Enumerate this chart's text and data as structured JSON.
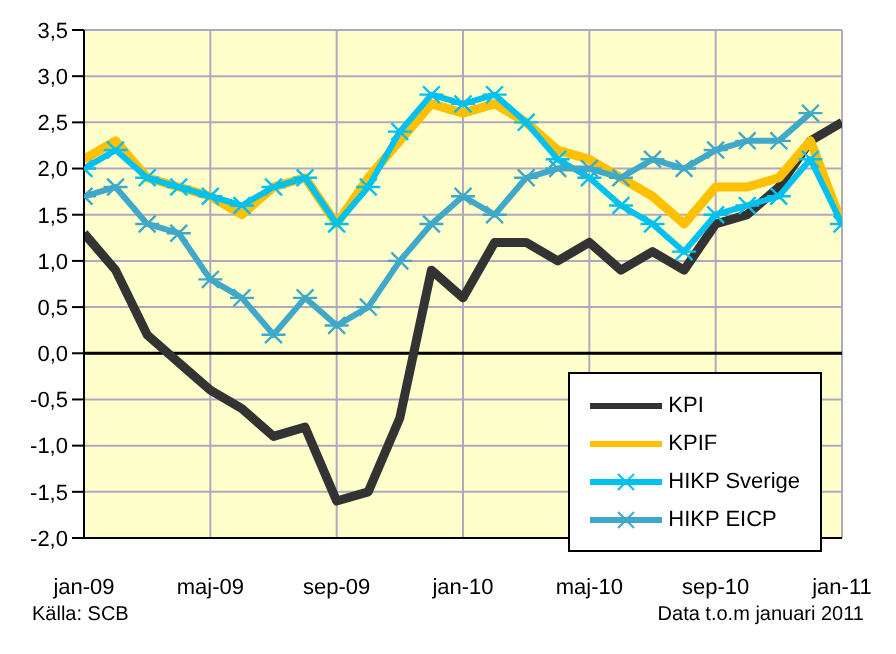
{
  "chart_data": {
    "type": "line",
    "categories": [
      "jan-09",
      null,
      null,
      null,
      "maj-09",
      null,
      null,
      null,
      "sep-09",
      null,
      null,
      null,
      "jan-10",
      null,
      null,
      null,
      "maj-10",
      null,
      null,
      null,
      "sep-10",
      null,
      null,
      null,
      "jan-11"
    ],
    "series": [
      {
        "name": "KPI",
        "color": "#333333",
        "marker": "none",
        "values": [
          1.3,
          0.9,
          0.2,
          -0.1,
          -0.4,
          -0.6,
          -0.9,
          -0.8,
          -1.6,
          -1.5,
          -0.7,
          0.9,
          0.6,
          1.2,
          1.2,
          1.0,
          1.2,
          0.9,
          1.1,
          0.9,
          1.4,
          1.5,
          1.8,
          2.3,
          2.5
        ]
      },
      {
        "name": "KPIF",
        "color": "#ffc000",
        "marker": "none",
        "values": [
          2.1,
          2.3,
          1.9,
          1.8,
          1.7,
          1.5,
          1.8,
          1.9,
          1.4,
          1.9,
          2.3,
          2.7,
          2.6,
          2.7,
          2.5,
          2.2,
          2.1,
          1.9,
          1.7,
          1.4,
          1.8,
          1.8,
          1.9,
          2.3,
          1.4
        ]
      },
      {
        "name": "HIKP Sverige",
        "color": "#00c0f0",
        "marker": "cross",
        "values": [
          2.0,
          2.2,
          1.9,
          1.8,
          1.7,
          1.6,
          1.8,
          1.9,
          1.4,
          1.8,
          2.4,
          2.8,
          2.7,
          2.8,
          2.5,
          2.1,
          1.9,
          1.6,
          1.4,
          1.1,
          1.5,
          1.6,
          1.7,
          2.1,
          1.4
        ]
      },
      {
        "name": "HIKP EICP",
        "color": "#40a8c8",
        "marker": "cross",
        "values": [
          1.7,
          1.8,
          1.4,
          1.3,
          0.8,
          0.6,
          0.2,
          0.6,
          0.3,
          0.5,
          1.0,
          1.4,
          1.7,
          1.5,
          1.9,
          2.0,
          2.0,
          1.9,
          2.1,
          2.0,
          2.2,
          2.3,
          2.3,
          2.6,
          null
        ]
      }
    ],
    "ylim": [
      -2.0,
      3.5
    ],
    "yticks": [
      {
        "value": -2,
        "label": "-2,0"
      },
      {
        "value": -1.5,
        "label": "-1,5"
      },
      {
        "value": -1,
        "label": "-1,0"
      },
      {
        "value": -0.5,
        "label": "-0,5"
      },
      {
        "value": 0,
        "label": "0,0"
      },
      {
        "value": 0.5,
        "label": "0,5"
      },
      {
        "value": 1,
        "label": "1,0"
      },
      {
        "value": 1.5,
        "label": "1,5"
      },
      {
        "value": 2,
        "label": "2,0"
      },
      {
        "value": 2.5,
        "label": "2,5"
      },
      {
        "value": 3,
        "label": "3,0"
      },
      {
        "value": 3.5,
        "label": "3,5"
      }
    ],
    "grid": true,
    "legend": "bottom right",
    "line_style": "solid",
    "annotations": [
      "Källa: SCB",
      "Data t.o.m januari 2011"
    ]
  }
}
